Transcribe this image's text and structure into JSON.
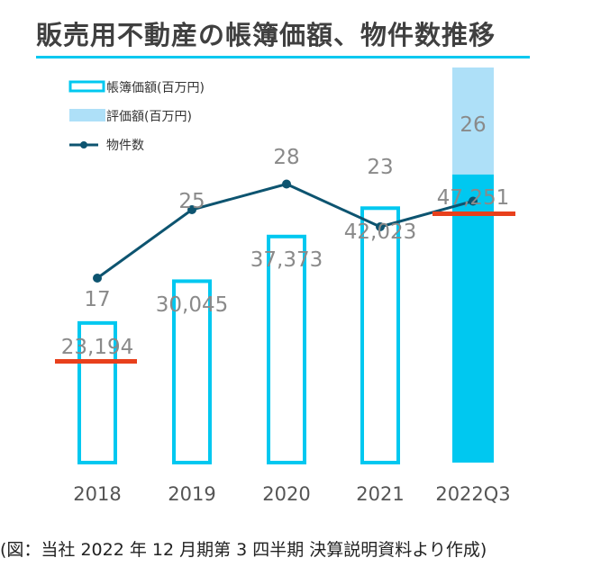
{
  "chart_data": {
    "type": "bar",
    "title": "販売用不動産の帳簿価額、物件数推移",
    "categories": [
      "2018",
      "2019",
      "2020",
      "2021",
      "2022Q3"
    ],
    "series": [
      {
        "name": "帳簿価額(百万円)",
        "type": "bar",
        "values": [
          23194,
          30045,
          37373,
          42023,
          47251
        ],
        "labels": [
          "23,194",
          "30,045",
          "37,373",
          "42,023",
          "47,251"
        ]
      },
      {
        "name": "評価額(百万円)",
        "type": "bar-stacked-top",
        "values": [
          null,
          null,
          null,
          null,
          null
        ]
      },
      {
        "name": "物件数",
        "type": "line",
        "values": [
          17,
          25,
          28,
          23,
          26
        ]
      }
    ],
    "highlighted_categories": [
      "2018",
      "2022Q3"
    ],
    "colors": {
      "book_value": "#00c8f0",
      "appraisal": "#aee0f8",
      "count_line": "#0d5470",
      "highlight": "#e8401c"
    }
  },
  "source_note": "(図：当社 2022 年 12 月期第 3 四半期  決算説明資料より作成)"
}
